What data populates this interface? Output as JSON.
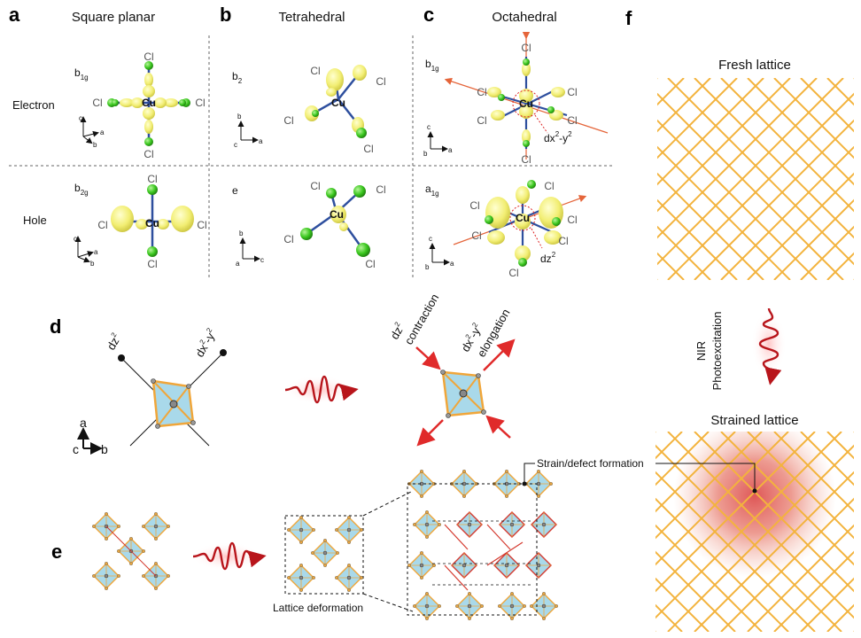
{
  "panels": {
    "a": {
      "label": "a",
      "title": "Square planar"
    },
    "b": {
      "label": "b",
      "title": "Tetrahedral"
    },
    "c": {
      "label": "c",
      "title": "Octahedral"
    },
    "d": {
      "label": "d"
    },
    "e": {
      "label": "e"
    },
    "f": {
      "label": "f"
    }
  },
  "rows": {
    "electron": "Electron",
    "hole": "Hole"
  },
  "orbitals": {
    "a_top": {
      "base": "b",
      "sub": "1g"
    },
    "a_bot": {
      "base": "b",
      "sub": "2g"
    },
    "b_top": {
      "base": "b",
      "sub": "2"
    },
    "b_bot": {
      "base": "e",
      "sub": ""
    },
    "c_top": {
      "base": "b",
      "sub": "1g"
    },
    "c_bot": {
      "base": "a",
      "sub": "1g"
    }
  },
  "atoms": {
    "ligand": "Cl",
    "metal": "Cu"
  },
  "axes": {
    "a": "a",
    "b": "b",
    "c": "c"
  },
  "c_annotations": {
    "top_base": "dx",
    "top_sup1": "2",
    "top_mid": "-y",
    "top_sup2": "2",
    "bot_base": "dz",
    "bot_sup": "2"
  },
  "d": {
    "left_dz": "dz",
    "left_dz_sup": "2",
    "left_dx": "dx",
    "left_dx_sup1": "2",
    "left_dx_mid": "-y",
    "left_dx_sup2": "2",
    "right_dz": "dz",
    "right_dz_sup": "2",
    "contraction": "contraction",
    "right_dx": "dx",
    "right_dx_sup1": "2",
    "right_dx_mid": "-y",
    "right_dx_sup2": "2",
    "elongation": "elongation"
  },
  "e": {
    "lattice_deformation": "Lattice deformation",
    "strain_defect": "Strain/defect formation"
  },
  "f": {
    "fresh": "Fresh lattice",
    "nir": "NIR",
    "photoexcitation": "Photoexcitation",
    "strained": "Strained lattice"
  },
  "colors": {
    "lattice": "#f3b33d",
    "octa_fill": "#a9d9ea",
    "octa_edge": "#f0a63a",
    "strain": "#d43a2f",
    "pulse": "#b8151b",
    "lobe": "#f2ee73",
    "cl": "#39c61d",
    "bond": "#2e4f9e"
  }
}
